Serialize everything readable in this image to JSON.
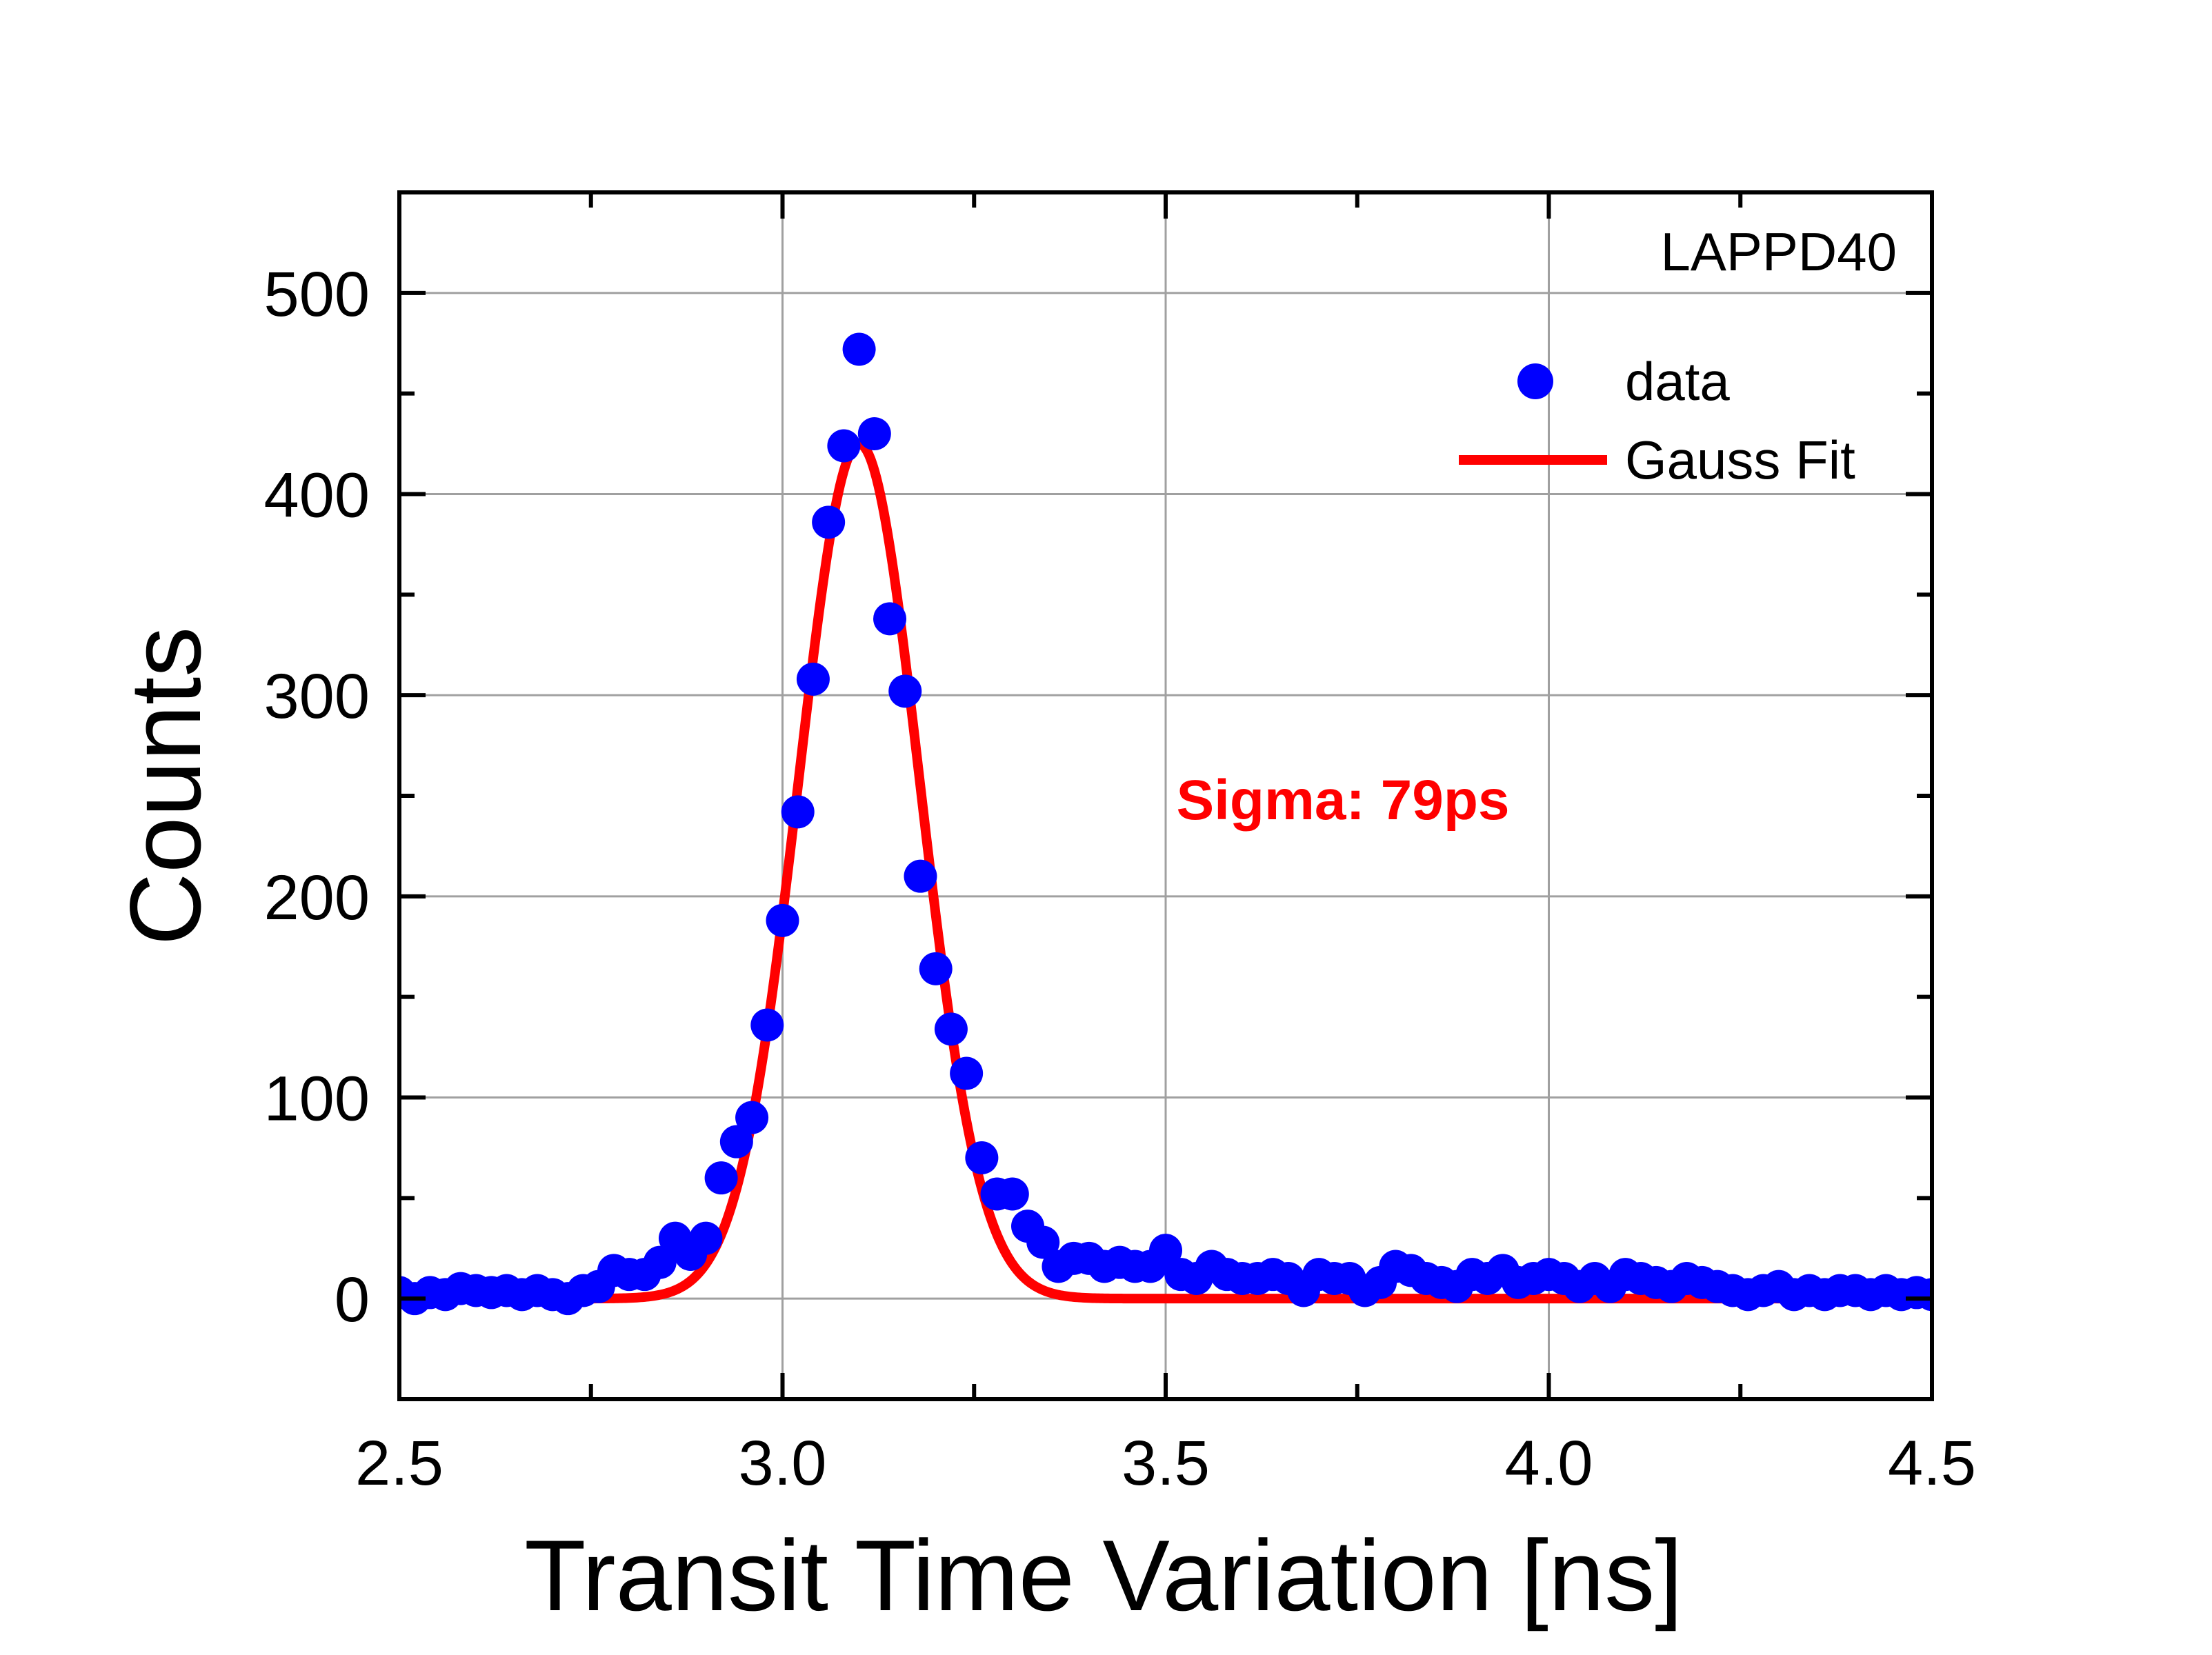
{
  "chart_data": {
    "type": "scatter",
    "xlabel": "Transit Time Variation [ns]",
    "ylabel": "Counts",
    "xlim": [
      2.5,
      4.5
    ],
    "ylim": [
      -50,
      550
    ],
    "xticks": [
      2.5,
      3.0,
      3.5,
      4.0,
      4.5
    ],
    "xtick_labels": [
      "2.5",
      "3.0",
      "3.5",
      "4.0",
      "4.5"
    ],
    "yticks": [
      0,
      100,
      200,
      300,
      400,
      500
    ],
    "ytick_labels": [
      "0",
      "100",
      "200",
      "300",
      "400",
      "500"
    ],
    "grid": true,
    "legend_position": "top-right",
    "annotations": {
      "device_label": "LAPPD40",
      "sigma_label": "Sigma: 79ps"
    },
    "colors": {
      "data": "#0000ff",
      "fit": "#ff0000",
      "sigma_text": "#ff0000",
      "grid": "#a0a0a0",
      "axis": "#000000"
    },
    "series": [
      {
        "name": "data",
        "kind": "scatter",
        "x": [
          2.5,
          2.52,
          2.54,
          2.56,
          2.58,
          2.6,
          2.62,
          2.64,
          2.66,
          2.68,
          2.7,
          2.72,
          2.74,
          2.76,
          2.78,
          2.8,
          2.82,
          2.84,
          2.86,
          2.88,
          2.9,
          2.92,
          2.94,
          2.96,
          2.98,
          3.0,
          3.02,
          3.04,
          3.06,
          3.08,
          3.1,
          3.12,
          3.14,
          3.16,
          3.18,
          3.2,
          3.22,
          3.24,
          3.26,
          3.28,
          3.3,
          3.32,
          3.34,
          3.36,
          3.38,
          3.4,
          3.42,
          3.44,
          3.46,
          3.48,
          3.5,
          3.52,
          3.54,
          3.56,
          3.58,
          3.6,
          3.62,
          3.64,
          3.66,
          3.68,
          3.7,
          3.72,
          3.74,
          3.76,
          3.78,
          3.8,
          3.82,
          3.84,
          3.86,
          3.88,
          3.9,
          3.92,
          3.94,
          3.96,
          3.98,
          4.0,
          4.02,
          4.04,
          4.06,
          4.08,
          4.1,
          4.12,
          4.14,
          4.16,
          4.18,
          4.2,
          4.22,
          4.24,
          4.26,
          4.28,
          4.3,
          4.32,
          4.34,
          4.36,
          4.38,
          4.4,
          4.42,
          4.44,
          4.46,
          4.48,
          4.5
        ],
        "y": [
          3,
          0,
          3,
          2,
          5,
          4,
          3,
          4,
          2,
          4,
          2,
          0,
          4,
          6,
          14,
          12,
          12,
          18,
          30,
          22,
          30,
          60,
          78,
          90,
          136,
          188,
          242,
          308,
          386,
          424,
          472,
          430,
          338,
          302,
          210,
          164,
          134,
          112,
          70,
          52,
          52,
          36,
          28,
          16,
          20,
          20,
          16,
          18,
          16,
          16,
          24,
          12,
          10,
          16,
          12,
          10,
          10,
          12,
          10,
          4,
          12,
          10,
          10,
          4,
          8,
          16,
          14,
          10,
          8,
          6,
          12,
          10,
          14,
          8,
          10,
          12,
          10,
          6,
          10,
          6,
          12,
          10,
          8,
          6,
          10,
          8,
          6,
          4,
          2,
          4,
          6,
          2,
          4,
          2,
          4,
          4,
          2,
          4,
          2,
          3,
          2
        ]
      },
      {
        "name": "Gauss Fit",
        "kind": "line",
        "model": "gaussian",
        "amplitude": 425,
        "center": 3.1,
        "sigma": 0.079,
        "baseline": 0
      }
    ]
  }
}
